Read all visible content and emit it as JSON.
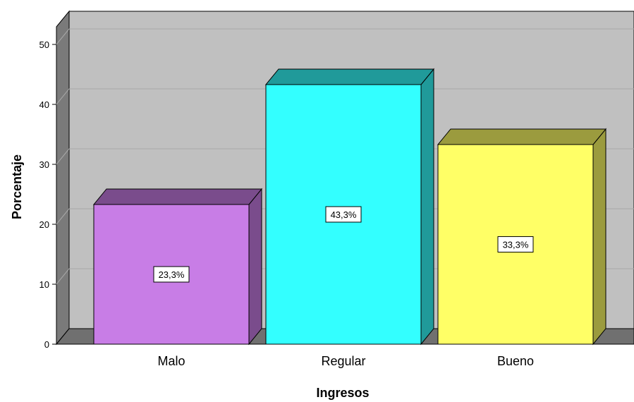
{
  "chart_data": {
    "type": "bar",
    "style": "3d",
    "categories": [
      "Malo",
      "Regular",
      "Bueno"
    ],
    "values": [
      23.3,
      43.3,
      33.3
    ],
    "data_labels": [
      "23,3%",
      "43,3%",
      "33,3%"
    ],
    "xlabel": "Ingresos",
    "ylabel": "Porcentaje",
    "ylim": [
      0,
      50
    ],
    "yticks": [
      0,
      10,
      20,
      30,
      40,
      50
    ],
    "ytick_labels": [
      "0",
      "10",
      "20",
      "30",
      "40",
      "50"
    ],
    "grid": true,
    "colors": {
      "plot_background": "#c0c0c0",
      "floor": "#707070",
      "gridline": "#a8a8a8",
      "bars": [
        "#c87de6",
        "#33ffff",
        "#ffff66"
      ],
      "bar_tops": [
        "#7a4c8c",
        "#209a9a",
        "#9b9b3e"
      ],
      "bar_sides": [
        "#7a4c8c",
        "#209a9a",
        "#9b9b3e"
      ]
    }
  }
}
